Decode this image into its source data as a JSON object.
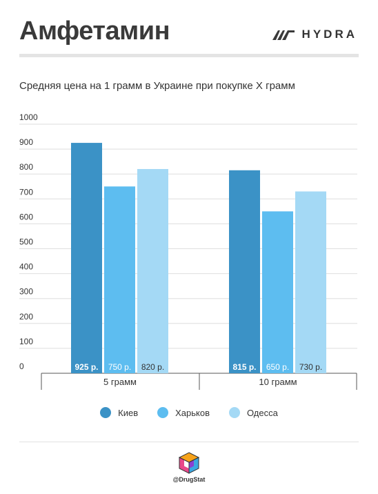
{
  "header": {
    "title": "Амфетамин",
    "brand": "HYDRA",
    "brand_icon": "hydra-logo-icon"
  },
  "chart_data": {
    "type": "bar",
    "title": "Средняя цена на 1 грамм в Украине при покупке X грамм",
    "categories": [
      "5 грамм",
      "10 грамм"
    ],
    "series": [
      {
        "name": "Киев",
        "color": "#3b92c6",
        "values": [
          925,
          815
        ],
        "labels": [
          "925 р.",
          "815 р."
        ]
      },
      {
        "name": "Харьков",
        "color": "#5dbdf0",
        "values": [
          750,
          650
        ],
        "labels": [
          "750 р.",
          "650 р."
        ]
      },
      {
        "name": "Одесса",
        "color": "#a4d9f5",
        "values": [
          820,
          730
        ],
        "labels": [
          "820 р.",
          "730 р."
        ]
      }
    ],
    "yticks": [
      0,
      100,
      200,
      300,
      400,
      500,
      600,
      700,
      800,
      900,
      1000
    ],
    "ylim": [
      0,
      1000
    ],
    "grid": true,
    "legend_position": "bottom"
  },
  "footer": {
    "handle": "@DrugStat",
    "logo_icon": "drugstat-cube-logo-icon"
  }
}
